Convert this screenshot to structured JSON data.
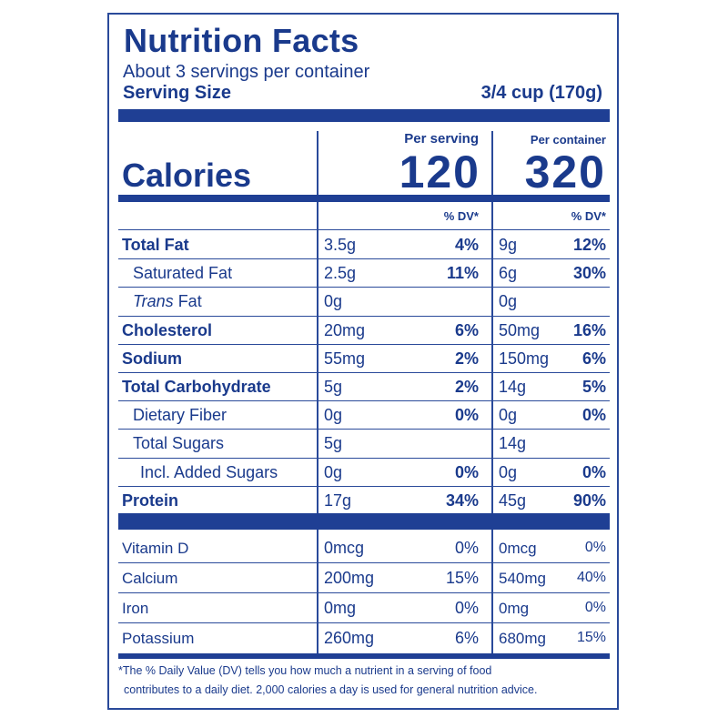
{
  "title": "Nutrition Facts",
  "servings_per_container": "About 3 servings per container",
  "serving_size_label": "Serving Size",
  "serving_size_value": "3/4 cup (170g)",
  "col_per_serving": "Per serving",
  "col_per_container": "Per container",
  "calories_label": "Calories",
  "calories_per_serving": "120",
  "calories_per_container": "320",
  "dv_header": "% DV*",
  "nutrients": [
    {
      "label": "Total Fat",
      "amount": "3.5g",
      "dv": "4%",
      "amount_c": "9g",
      "dv_c": "12%"
    },
    {
      "label": "Saturated Fat",
      "amount": "2.5g",
      "dv": "11%",
      "amount_c": "6g",
      "dv_c": "30%"
    },
    {
      "label_italic": "Trans",
      "label_rest": " Fat",
      "amount": "0g",
      "dv": "",
      "amount_c": "0g",
      "dv_c": ""
    },
    {
      "label": "Cholesterol",
      "amount": "20mg",
      "dv": "6%",
      "amount_c": "50mg",
      "dv_c": "16%"
    },
    {
      "label": "Sodium",
      "amount": "55mg",
      "dv": "2%",
      "amount_c": "150mg",
      "dv_c": "6%"
    },
    {
      "label": "Total Carbohydrate",
      "amount": "5g",
      "dv": "2%",
      "amount_c": "14g",
      "dv_c": "5%"
    },
    {
      "label": "Dietary Fiber",
      "amount": "0g",
      "dv": "0%",
      "amount_c": "0g",
      "dv_c": "0%"
    },
    {
      "label": "Total Sugars",
      "amount": "5g",
      "dv": "",
      "amount_c": "14g",
      "dv_c": ""
    },
    {
      "label": "Incl. Added Sugars",
      "amount": "0g",
      "dv": "0%",
      "amount_c": "0g",
      "dv_c": "0%"
    },
    {
      "label": "Protein",
      "amount": "17g",
      "dv": "34%",
      "amount_c": "45g",
      "dv_c": "90%"
    }
  ],
  "vitamins": [
    {
      "label": "Vitamin D",
      "amount": "0mcg",
      "dv": "0%",
      "amount_c": "0mcg",
      "dv_c": "0%"
    },
    {
      "label": "Calcium",
      "amount": "200mg",
      "dv": "15%",
      "amount_c": "540mg",
      "dv_c": "40%"
    },
    {
      "label": "Iron",
      "amount": "0mg",
      "dv": "0%",
      "amount_c": "0mg",
      "dv_c": "0%"
    },
    {
      "label": "Potassium",
      "amount": "260mg",
      "dv": "6%",
      "amount_c": "680mg",
      "dv_c": "15%"
    }
  ],
  "footnote_line1": "*The % Daily Value (DV) tells you how much a nutrient in a serving of food",
  "footnote_line2": "contributes to a daily diet. 2,000 calories a day is used for general nutrition advice.",
  "colors": {
    "ink": "#1a3a8c",
    "bar": "#1f3f94",
    "rule": "#2a4a9a"
  }
}
